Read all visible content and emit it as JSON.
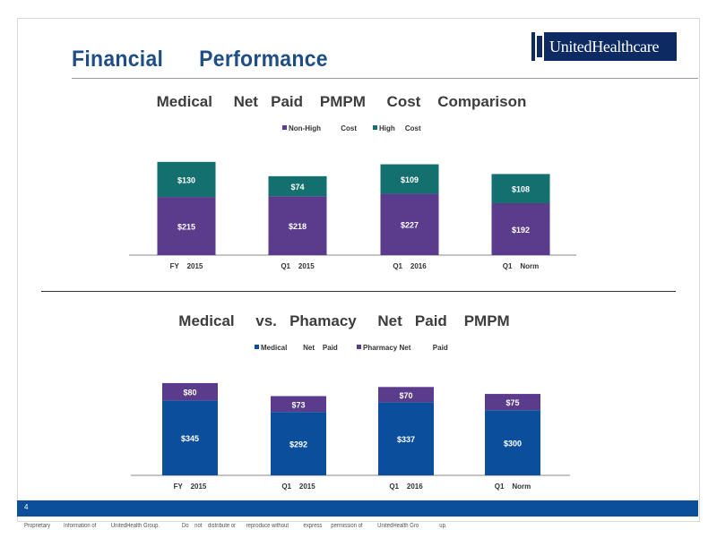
{
  "slide": {
    "title": "Financial      Performance",
    "logo_text": "UnitedHealthcare",
    "page_number": "4",
    "disclaimer": "Proprietary         Information of          UnitedHealth Group.               Do    not    distribute or       reproduce without          express      permission of          UnitedHealth Gro              up."
  },
  "colors": {
    "purple": "#5a3b8c",
    "teal": "#14706f",
    "blue": "#0b4f9c",
    "title_blue": "#1f4e87"
  },
  "chart_data": [
    {
      "type": "bar",
      "stacked": true,
      "title": "Medical     Net   Paid    PMPM     Cost    Comparison",
      "categories": [
        "FY    2015",
        "Q1    2015",
        "Q1    2016",
        "Q1    Norm"
      ],
      "series": [
        {
          "name": "Non-High          Cost",
          "color": "#5a3b8c",
          "values": [
            215,
            218,
            227,
            192
          ],
          "labels": [
            "$215",
            "$218",
            "$227",
            "$192"
          ]
        },
        {
          "name": "High     Cost",
          "color": "#14706f",
          "values": [
            130,
            74,
            109,
            108
          ],
          "labels": [
            "$130",
            "$74",
            "$109",
            "$108"
          ]
        }
      ],
      "legend_position": "top",
      "grid": false
    },
    {
      "type": "bar",
      "stacked": true,
      "title": "Medical     vs.   Phamacy     Net   Paid    PMPM",
      "categories": [
        "FY    2015",
        "Q1    2015",
        "Q1    2016",
        "Q1    Norm"
      ],
      "series": [
        {
          "name": "Medical        Net    Paid",
          "color": "#0b4f9c",
          "values": [
            345,
            292,
            337,
            300
          ],
          "labels": [
            "$345",
            "$292",
            "$337",
            "$300"
          ]
        },
        {
          "name": "Pharmacy Net           Paid",
          "color": "#5a3b8c",
          "values": [
            80,
            73,
            70,
            75
          ],
          "labels": [
            "$80",
            "$73",
            "$70",
            "$75"
          ]
        }
      ],
      "legend_position": "top",
      "grid": false
    }
  ]
}
